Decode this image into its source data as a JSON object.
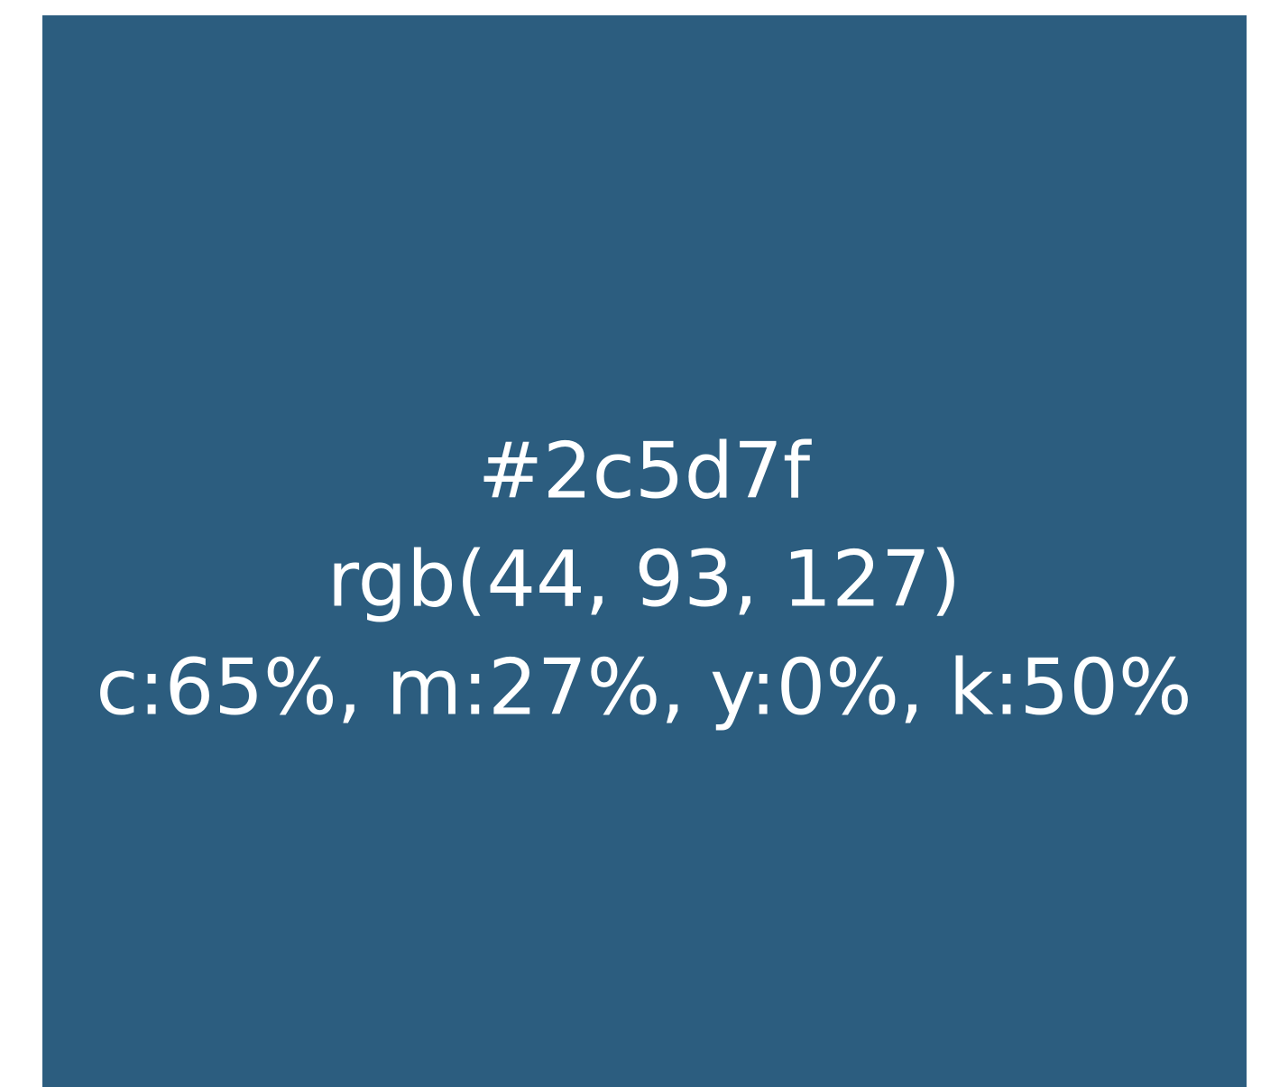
{
  "swatch": {
    "color": "#2c5d7f",
    "lines": [
      "#2c5d7f",
      "rgb(44, 93, 127)",
      "c:65%, m:27%, y:0%, k:50%"
    ]
  }
}
